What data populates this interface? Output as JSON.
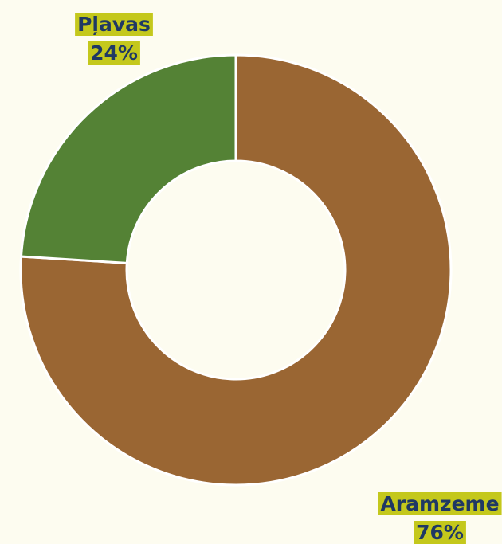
{
  "chart_data": {
    "type": "donut",
    "categories": [
      "Aramzeme",
      "Pļavas"
    ],
    "values": [
      76,
      24
    ],
    "value_labels": [
      "76%",
      "24%"
    ],
    "colors": [
      "#9a6633",
      "#548235"
    ]
  }
}
